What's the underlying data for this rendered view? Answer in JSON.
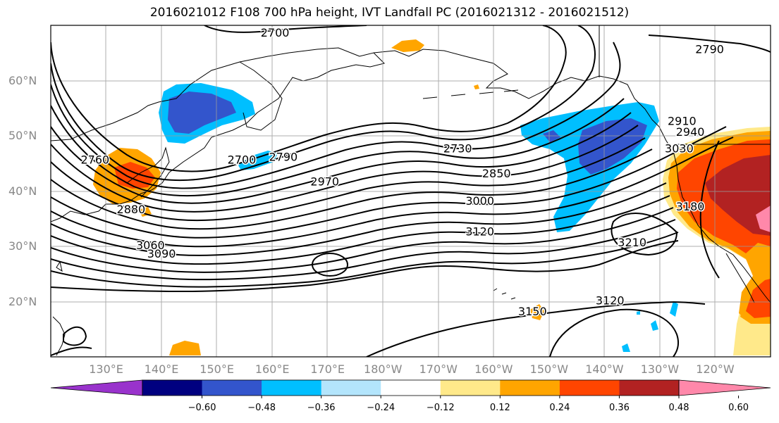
{
  "title": "2016021012 F108 700 hPa height, IVT Landfall PC (2016021312 - 2016021512)",
  "map": {
    "lon_range": [
      120,
      250
    ],
    "lat_range": [
      10,
      70
    ],
    "lat_ticks": [
      {
        "value": 20,
        "label": "20°N"
      },
      {
        "value": 30,
        "label": "30°N"
      },
      {
        "value": 40,
        "label": "40°N"
      },
      {
        "value": 50,
        "label": "50°N"
      },
      {
        "value": 60,
        "label": "60°N"
      }
    ],
    "lon_ticks": [
      {
        "value": 130,
        "label": "130°E"
      },
      {
        "value": 140,
        "label": "140°E"
      },
      {
        "value": 150,
        "label": "150°E"
      },
      {
        "value": 160,
        "label": "160°E"
      },
      {
        "value": 170,
        "label": "170°E"
      },
      {
        "value": 180,
        "label": "180°W"
      },
      {
        "value": 190,
        "label": "170°W"
      },
      {
        "value": 200,
        "label": "160°W"
      },
      {
        "value": 210,
        "label": "150°W"
      },
      {
        "value": 220,
        "label": "140°W"
      },
      {
        "value": 230,
        "label": "130°W"
      },
      {
        "value": 240,
        "label": "120°W"
      }
    ],
    "contour_labels": [
      {
        "text": "2700",
        "lon": 160.5,
        "lat": 68.5
      },
      {
        "text": "2790",
        "lon": 239,
        "lat": 65.5
      },
      {
        "text": "2760",
        "lon": 128,
        "lat": 45.5
      },
      {
        "text": "2700",
        "lon": 154.5,
        "lat": 45.5
      },
      {
        "text": "2790",
        "lon": 162,
        "lat": 46
      },
      {
        "text": "2730",
        "lon": 193.5,
        "lat": 47.5
      },
      {
        "text": "2910",
        "lon": 234,
        "lat": 52.5
      },
      {
        "text": "2940",
        "lon": 235.5,
        "lat": 50.5
      },
      {
        "text": "3030",
        "lon": 233.5,
        "lat": 47.5
      },
      {
        "text": "2970",
        "lon": 169.5,
        "lat": 41.5
      },
      {
        "text": "2850",
        "lon": 200.5,
        "lat": 43
      },
      {
        "text": "3000",
        "lon": 197.5,
        "lat": 38
      },
      {
        "text": "2880",
        "lon": 134.5,
        "lat": 36.5
      },
      {
        "text": "3180",
        "lon": 235.5,
        "lat": 37
      },
      {
        "text": "3120",
        "lon": 197.5,
        "lat": 32.5
      },
      {
        "text": "3210",
        "lon": 225,
        "lat": 30.5
      },
      {
        "text": "3060",
        "lon": 138,
        "lat": 30
      },
      {
        "text": "3090",
        "lon": 140,
        "lat": 28.5
      },
      {
        "text": "3120",
        "lon": 221,
        "lat": 20
      },
      {
        "text": "3150",
        "lon": 207,
        "lat": 18
      }
    ]
  },
  "colorbar": {
    "colors": [
      "#9933cc",
      "#000080",
      "#3355cc",
      "#00bfff",
      "#b3e5fc",
      "#ffffff",
      "#ffe98a",
      "#ffa500",
      "#ff4500",
      "#b22222",
      "#ff88aa"
    ],
    "tick_values": [
      "−0.60",
      "−0.48",
      "−0.36",
      "−0.24",
      "−0.12",
      "0.12",
      "0.24",
      "0.36",
      "0.48",
      "0.60"
    ]
  },
  "shading_colors": {
    "dark_blue": "#3355cc",
    "blue": "#00bfff",
    "light_blue": "#b3e5fc",
    "yellow": "#ffe98a",
    "orange": "#ffa500",
    "red_orange": "#ff4500",
    "dark_red": "#b22222",
    "pink": "#ff88aa"
  }
}
